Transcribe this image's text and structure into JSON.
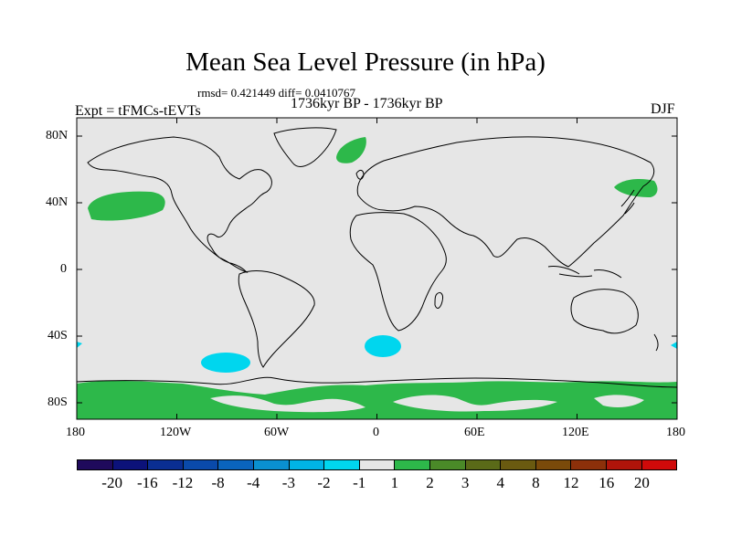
{
  "title": "Mean Sea Level Pressure (in hPa)",
  "stats": "rmsd= 0.421449 diff= 0.0410767",
  "period": "1736kyr BP - 1736kyr BP",
  "experiment": "Expt = tFMCs-tEVTs",
  "season": "DJF",
  "lat_labels": [
    "80N",
    "40N",
    "0",
    "40S",
    "80S"
  ],
  "lon_labels": [
    "180",
    "120W",
    "60W",
    "0",
    "60E",
    "120E",
    "180"
  ],
  "colorbar": {
    "colors": [
      "#1f0a5c",
      "#0c127a",
      "#0a2e92",
      "#0a4aaa",
      "#0a64bd",
      "#0a90d0",
      "#00b4e6",
      "#00d6ee",
      "#e6e6e6",
      "#2db84a",
      "#4a8a28",
      "#5a6a18",
      "#6a5a10",
      "#7a4a0a",
      "#8c300a",
      "#b0140a",
      "#d00a0a"
    ],
    "labels": [
      "-20",
      "-16",
      "-12",
      "-8",
      "-4",
      "-3",
      "-2",
      "-1",
      "1",
      "2",
      "3",
      "4",
      "8",
      "12",
      "16",
      "20"
    ]
  },
  "colors": {
    "background_field": "#e6e6e6",
    "positive_anomaly": "#2db84a",
    "negative_anomaly": "#00d6ee",
    "coastline": "#000000"
  }
}
